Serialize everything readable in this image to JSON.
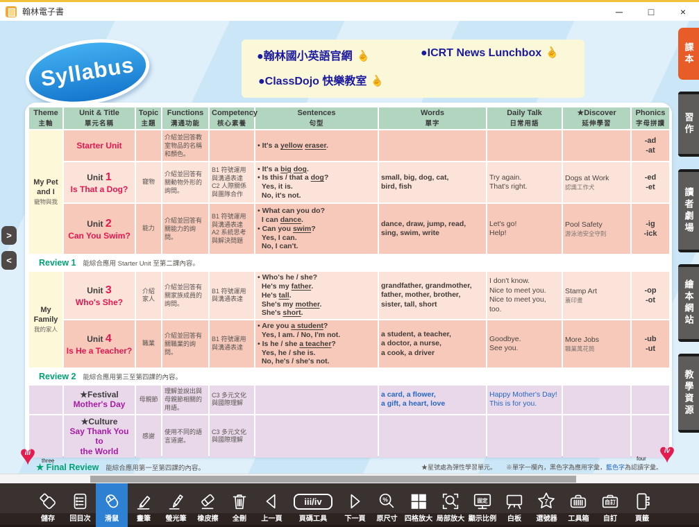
{
  "window": {
    "title": "翰林電子書",
    "controls": {
      "minimize": "─",
      "maximize": "□",
      "close": "×"
    }
  },
  "banner": {
    "logo": "Syllabus",
    "links": [
      {
        "label": "●翰林國小英語官網",
        "hand": "☝"
      },
      {
        "label": "●ICRT News Lunchbox",
        "hand": "☝"
      },
      {
        "label": "●ClassDojo 快樂教室",
        "hand": "☝"
      }
    ]
  },
  "sidebar_tabs": [
    {
      "label": "課本",
      "active": true
    },
    {
      "label": "習作",
      "active": false
    },
    {
      "label": "讀者劇場",
      "active": false
    },
    {
      "label": "繪本網站",
      "active": false
    },
    {
      "label": "教學資源",
      "active": false
    }
  ],
  "nav_arrows": {
    "expand": ">",
    "collapse": "<"
  },
  "table": {
    "headers": [
      {
        "en": "Theme",
        "zh": "主軸"
      },
      {
        "en": "Unit & Title",
        "zh": "單元名稱"
      },
      {
        "en": "Topic",
        "zh": "主題"
      },
      {
        "en": "Functions",
        "zh": "溝通功能"
      },
      {
        "en": "Competency",
        "zh": "核心素養"
      },
      {
        "en": "Sentences",
        "zh": "句型"
      },
      {
        "en": "Words",
        "zh": "單字"
      },
      {
        "en": "Daily Talk",
        "zh": "日常用語"
      },
      {
        "en": "★Discover",
        "zh": "延伸學習"
      },
      {
        "en": "Phonics",
        "zh": "字母拼讀"
      }
    ],
    "themes": [
      {
        "en": "My Pet\nand I",
        "zh": "寵物與我"
      },
      {
        "en": "My\nFamily",
        "zh": "我的家人"
      }
    ],
    "rows": [
      {
        "unit": {
          "title": "Starter Unit"
        },
        "topic": "",
        "functions": "介紹並回答教室物品的名稱和顏色。",
        "competency": "",
        "sentences": "• It's a _yellow_ _eraser_.",
        "words": "",
        "daily": "",
        "discover": {
          "en": "",
          "zh": ""
        },
        "phonics": "-ad\n-at"
      },
      {
        "unit": {
          "prefix": "Unit",
          "number": "1",
          "title": "Is That a Dog?"
        },
        "topic": "寵物",
        "functions": "介紹並回答有關動物外形的詢問。",
        "competency": "B1 符號運用\n與溝通表達\nC2 人際關係\n與團隊合作",
        "sentences": "• It's a _big_ _dog_.\n• Is this / that a _dog_?\n  Yes, it is.\n  No, it's not.",
        "words": "small, big, dog, cat,\nbird, fish",
        "daily": "Try again.\nThat's right.",
        "discover": {
          "en": "Dogs at Work",
          "zh": "認識工作犬"
        },
        "phonics": "-ed\n-et"
      },
      {
        "unit": {
          "prefix": "Unit",
          "number": "2",
          "title": "Can You Swim?"
        },
        "topic": "能力",
        "functions": "介紹並回答有關能力的詢問。",
        "competency": "B1 符號運用\n與溝通表達\nA2 系統思考\n與解決問題",
        "sentences": "• What can you do?\n  I can _dance_.\n• Can you _swim_?\n  Yes, I can.\n  No, I can't.",
        "words": "dance, draw, jump, read,\nsing, swim, write",
        "daily": "Let's go!\nHelp!",
        "discover": {
          "en": "Pool Safety",
          "zh": "游泳池安全守則"
        },
        "phonics": "-ig\n-ick"
      },
      {
        "unit": {
          "prefix": "Unit",
          "number": "3",
          "title": "Who's She?"
        },
        "topic": "介紹\n家人",
        "functions": "介紹並回答有關家族成員的詢問。",
        "competency": "B1 符號運用\n與溝通表達",
        "sentences": "• Who's he / she?\n  He's my _father_.\n  He's _tall_.\n  She's my _mother_.\n  She's _short_.",
        "words": "grandfather, grandmother,\nfather, mother, brother,\nsister, tall, short",
        "daily": "I don't know.\nNice to meet you.\nNice to meet you, too.",
        "discover": {
          "en": "Stamp Art",
          "zh": "蓋印畫"
        },
        "phonics": "-op\n-ot"
      },
      {
        "unit": {
          "prefix": "Unit",
          "number": "4",
          "title": "Is He a Teacher?"
        },
        "topic": "職業",
        "functions": "介紹並回答有關職業的詢問。",
        "competency": "B1 符號運用\n與溝通表達",
        "sentences": "• Are you _a student_?\n  Yes, I am. / No, I'm not.\n• Is he / she _a teacher_?\n  Yes, he / she is.\n  No, he's / she's not.",
        "words": "a student, a teacher,\na doctor, a nurse,\na cook, a driver",
        "daily": "Goodbye.\nSee you.",
        "discover": {
          "en": "More Jobs",
          "zh": "職業萬花筒"
        },
        "phonics": "-ub\n-ut"
      },
      {
        "unit": {
          "star": "★",
          "kind": "Festival",
          "title": "Mother's Day"
        },
        "topic": "母親節",
        "functions": "理解並說出與母親節相關的用語。",
        "competency": "C3 多元文化\n與國際理解",
        "sentences": "",
        "words": "a card, a flower,\na gift, a heart, love",
        "daily": "Happy Mother's Day!\nThis is for you.",
        "discover": {
          "en": "",
          "zh": ""
        },
        "phonics": ""
      },
      {
        "unit": {
          "star": "★",
          "kind": "Culture",
          "title": "Say Thank You to\nthe World"
        },
        "topic": "感謝",
        "functions": "使用不同的語言道謝。",
        "competency": "C3 多元文化\n與國際理解",
        "sentences": "",
        "words": "",
        "daily": "",
        "discover": {
          "en": "",
          "zh": ""
        },
        "phonics": ""
      }
    ],
    "reviews": [
      {
        "label": "Review 1",
        "text": "能綜合應用 Starter Unit 至第二課內容。"
      },
      {
        "label": "Review 2",
        "text": "能綜合應用第三至第四課的內容。"
      }
    ],
    "final_review": {
      "label": "★ Final Review",
      "text": "能綜合應用第一至第四課的內容。"
    },
    "footnote": {
      "part1": "★星號處為彈性學習單元。",
      "part2": "※單字一欄內，黑色字為應用字彙，",
      "blue": "藍色字",
      "part3": "為認讀字彙。"
    }
  },
  "page_footer": {
    "left_roman": "iii",
    "left_word": "three",
    "right_roman": "iv",
    "right_word": "four",
    "heart": "♥"
  },
  "toolbar": {
    "items": [
      {
        "label": "儲存"
      },
      {
        "label": "回目次"
      },
      {
        "label": "滑鼠",
        "active": true
      },
      {
        "label": "畫筆"
      },
      {
        "label": "螢光筆"
      },
      {
        "label": "橡皮擦"
      },
      {
        "label": "全刪"
      },
      {
        "label": "上一頁"
      },
      {
        "label": "頁碼工具",
        "value": "iii/iv"
      },
      {
        "label": "下一頁"
      },
      {
        "label": "原尺寸",
        "value": "%"
      },
      {
        "label": "四格放大"
      },
      {
        "label": "局部放大"
      },
      {
        "label": "顯示比例",
        "value": "固定"
      },
      {
        "label": "白板"
      },
      {
        "label": "選號器",
        "value": "7"
      },
      {
        "label": "工具箱"
      },
      {
        "label": "自訂",
        "value": "自訂"
      },
      {
        "label": "頁籤"
      }
    ]
  },
  "colors": {
    "accent_orange": "#e85c28",
    "tab_gray": "#5e5c5a",
    "header_green": "#b2d5c0",
    "row_pink_dark": "#f6c9bb",
    "row_pink_light": "#fce3da",
    "row_purple": "#e9d8ea",
    "theme_yellow": "#fdf8d8",
    "unit_red": "#e3174f",
    "festival_purple": "#a81ba5",
    "review_green": "#00a273",
    "word_blue": "#2567c4",
    "link_navy": "#1b1a9e",
    "toolbar_blue": "#2e80d2",
    "toolbar_bg": "#3a3230",
    "stage_blue": "#cbe6f6"
  }
}
